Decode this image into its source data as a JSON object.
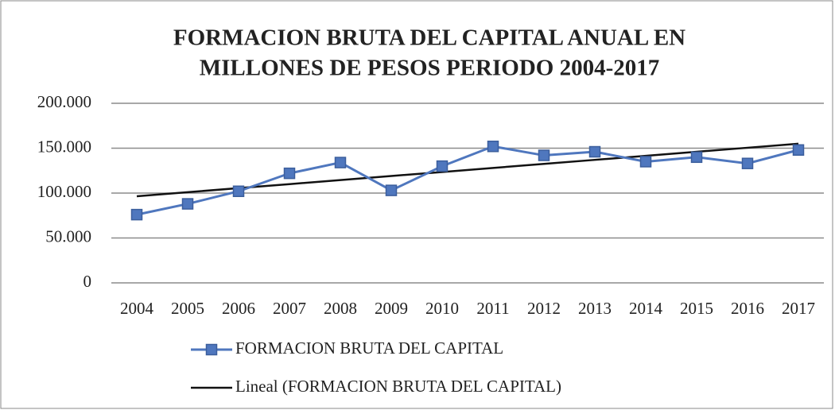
{
  "chart_data": {
    "type": "line",
    "title": [
      "FORMACION BRUTA DEL CAPITAL ANUAL EN",
      "MILLONES DE PESOS PERIODO  2004-2017"
    ],
    "categories": [
      "2004",
      "2005",
      "2006",
      "2007",
      "2008",
      "2009",
      "2010",
      "2011",
      "2012",
      "2013",
      "2014",
      "2015",
      "2016",
      "2017"
    ],
    "series": [
      {
        "name": "FORMACION BRUTA DEL CAPITAL",
        "color": "#4f77be",
        "marker": "square",
        "values": [
          76000,
          88000,
          102000,
          122000,
          134000,
          103000,
          130000,
          152000,
          142000,
          146000,
          135000,
          140000,
          133000,
          148000
        ]
      },
      {
        "name": "Lineal (FORMACION BRUTA DEL CAPITAL)",
        "color": "#111111",
        "values": [
          96500,
          101000,
          105500,
          110000,
          114500,
          119000,
          123500,
          128000,
          132500,
          137000,
          141500,
          146000,
          150500,
          155000
        ]
      }
    ],
    "ylim": [
      0,
      200000
    ],
    "yticks": [
      0,
      {
        "value": 50000,
        "label": "50.000"
      },
      {
        "value": 100000,
        "label": "100.000"
      },
      {
        "value": 150000,
        "label": "150.000"
      },
      {
        "value": 200000,
        "label": "200.000"
      }
    ],
    "grid": true,
    "legend": "bottom"
  }
}
